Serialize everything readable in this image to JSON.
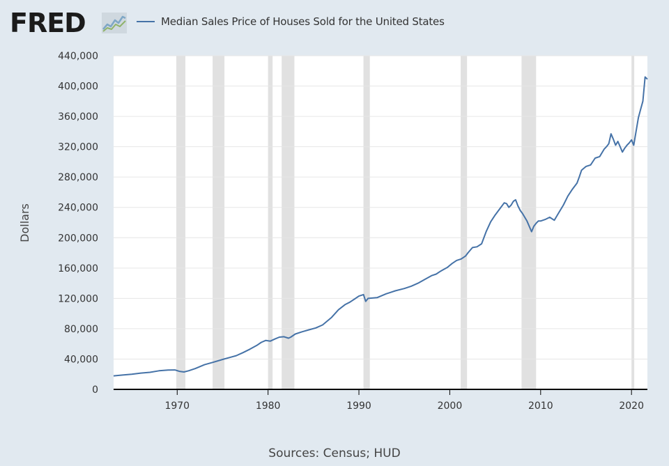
{
  "brand": {
    "logo_text": "FRED",
    "logo_icon": "fred-graph-icon"
  },
  "colors": {
    "background": "#e1e9f0",
    "plot_background": "#ffffff",
    "series": "#4572a7",
    "recession": "#e1e1e1",
    "grid": "#e6e6e6",
    "axis_text": "#333333"
  },
  "source_text": "Sources: Census; HUD",
  "chart_data": {
    "type": "line",
    "title": "",
    "xlabel": "",
    "ylabel": "Dollars",
    "xlim": [
      1963,
      2021.75
    ],
    "ylim": [
      0,
      440000
    ],
    "xticks": [
      1970,
      1980,
      1990,
      2000,
      2010,
      2020
    ],
    "xtick_labels": [
      "1970",
      "1980",
      "1990",
      "2000",
      "2010",
      "2020"
    ],
    "yticks": [
      0,
      40000,
      80000,
      120000,
      160000,
      200000,
      240000,
      280000,
      320000,
      360000,
      400000,
      440000
    ],
    "ytick_labels": [
      "0",
      "40,000",
      "80,000",
      "120,000",
      "160,000",
      "200,000",
      "240,000",
      "280,000",
      "320,000",
      "360,000",
      "400,000",
      "440,000"
    ],
    "grid": true,
    "legend_position": "top-left",
    "recessions": [
      [
        1969.9,
        1970.9
      ],
      [
        1973.9,
        1975.2
      ],
      [
        1980.0,
        1980.5
      ],
      [
        1981.5,
        1982.9
      ],
      [
        1990.5,
        1991.2
      ],
      [
        2001.2,
        2001.9
      ],
      [
        2007.9,
        2009.5
      ],
      [
        2020.0,
        2020.3
      ]
    ],
    "series": [
      {
        "name": "Median Sales Price of Houses Sold for the United States",
        "x": [
          1963.0,
          1964.0,
          1965.0,
          1966.0,
          1967.0,
          1968.0,
          1969.0,
          1969.75,
          1970.25,
          1970.75,
          1971.25,
          1972.0,
          1973.0,
          1974.0,
          1975.0,
          1975.75,
          1976.5,
          1977.25,
          1978.0,
          1978.75,
          1979.25,
          1979.75,
          1980.25,
          1980.75,
          1981.25,
          1981.75,
          1982.25,
          1982.5,
          1983.0,
          1983.75,
          1984.5,
          1985.25,
          1986.0,
          1987.0,
          1987.75,
          1988.5,
          1989.0,
          1989.5,
          1990.0,
          1990.5,
          1990.75,
          1991.0,
          1992.0,
          1993.0,
          1993.5,
          1994.0,
          1995.0,
          1995.75,
          1996.5,
          1997.25,
          1998.0,
          1998.5,
          1999.0,
          1999.75,
          2000.25,
          2000.75,
          2001.25,
          2001.75,
          2002.0,
          2002.5,
          2003.0,
          2003.5,
          2004.0,
          2004.5,
          2005.0,
          2005.5,
          2006.0,
          2006.25,
          2006.5,
          2006.75,
          2007.0,
          2007.25,
          2007.5,
          2007.75,
          2008.0,
          2008.5,
          2009.0,
          2009.25,
          2009.5,
          2009.75,
          2010.0,
          2010.5,
          2011.0,
          2011.5,
          2012.0,
          2012.5,
          2013.0,
          2013.5,
          2014.0,
          2014.25,
          2014.5,
          2015.0,
          2015.5,
          2016.0,
          2016.5,
          2017.0,
          2017.25,
          2017.5,
          2017.75,
          2018.0,
          2018.25,
          2018.5,
          2018.75,
          2019.0,
          2019.25,
          2019.5,
          2019.75,
          2020.0,
          2020.25,
          2020.5,
          2020.75,
          2021.0,
          2021.25,
          2021.5,
          2021.75
        ],
        "y": [
          17800,
          18900,
          20000,
          21500,
          22500,
          24500,
          25500,
          25600,
          23800,
          23000,
          24500,
          27500,
          32500,
          35900,
          39500,
          42000,
          44500,
          48500,
          53000,
          58000,
          62000,
          64600,
          63700,
          66400,
          68900,
          69400,
          67500,
          68900,
          73000,
          76000,
          78500,
          81000,
          85000,
          95000,
          105000,
          112000,
          115000,
          119000,
          123000,
          125000,
          116000,
          120000,
          121000,
          126000,
          128000,
          130000,
          133000,
          136000,
          140000,
          145000,
          150000,
          152000,
          156000,
          161000,
          166000,
          170000,
          172000,
          176000,
          180000,
          187000,
          188000,
          192000,
          208000,
          221000,
          230000,
          238000,
          246000,
          245000,
          240000,
          243000,
          248000,
          250000,
          242000,
          236000,
          232000,
          222000,
          208000,
          215000,
          219000,
          222000,
          222000,
          224000,
          227000,
          223000,
          233000,
          243000,
          255000,
          264000,
          272000,
          280000,
          289000,
          294000,
          296000,
          305000,
          307000,
          317000,
          320000,
          324000,
          337000,
          330000,
          322000,
          327000,
          320000,
          313000,
          318000,
          322000,
          325000,
          329000,
          322000,
          340000,
          358000,
          369000,
          380000,
          412000,
          409000
        ]
      }
    ]
  }
}
